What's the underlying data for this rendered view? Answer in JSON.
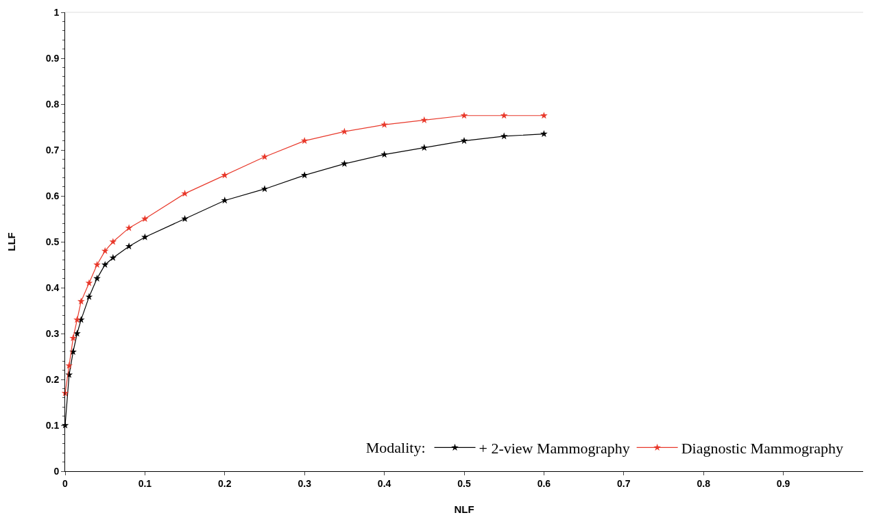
{
  "chart_data": {
    "type": "line",
    "xlabel": "NLF",
    "ylabel": "LLF",
    "legend_title": "Modality:",
    "legend": "bottom",
    "grid": false,
    "marker": "star",
    "line_style": "solid",
    "xlim": [
      0,
      1
    ],
    "xticks": [
      0,
      0.1,
      0.2,
      0.3,
      0.4,
      0.5,
      0.6,
      0.7,
      0.8,
      0.9
    ],
    "ylim": [
      0,
      1
    ],
    "yticks": [
      0,
      0.1,
      0.2,
      0.3,
      0.4,
      0.5,
      0.6,
      0.7,
      0.8,
      0.9,
      1
    ],
    "x": [
      0,
      0.005,
      0.01,
      0.015,
      0.02,
      0.03,
      0.04,
      0.05,
      0.06,
      0.08,
      0.1,
      0.15,
      0.2,
      0.25,
      0.3,
      0.35,
      0.4,
      0.45,
      0.5,
      0.55,
      0.6
    ],
    "series": [
      {
        "name": "+ 2-view Mammography",
        "color": "#000000",
        "values": [
          0.1,
          0.21,
          0.26,
          0.3,
          0.33,
          0.38,
          0.42,
          0.45,
          0.465,
          0.49,
          0.51,
          0.55,
          0.59,
          0.615,
          0.645,
          0.67,
          0.69,
          0.705,
          0.72,
          0.73,
          0.735
        ]
      },
      {
        "name": "Diagnostic Mammography",
        "color": "#e8382a",
        "values": [
          0.17,
          0.23,
          0.29,
          0.33,
          0.37,
          0.41,
          0.45,
          0.48,
          0.5,
          0.53,
          0.55,
          0.605,
          0.645,
          0.685,
          0.72,
          0.74,
          0.755,
          0.765,
          0.775,
          0.775,
          0.775
        ]
      }
    ]
  }
}
